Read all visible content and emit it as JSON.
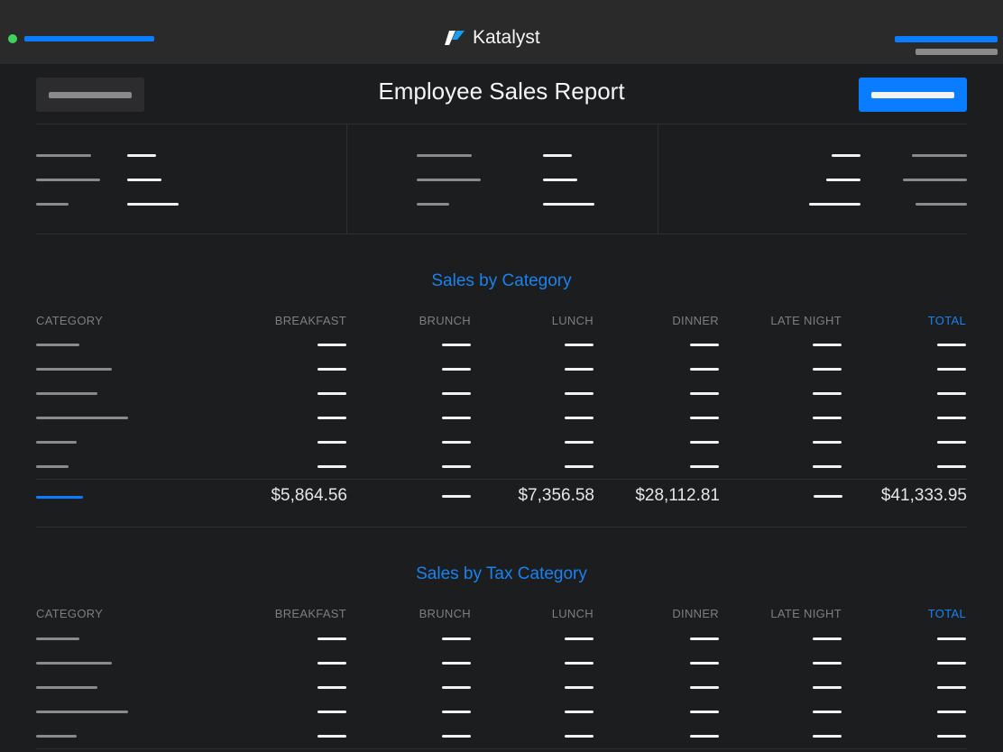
{
  "header": {
    "brand": "Katalyst",
    "status_color": "#3fd35b",
    "accent": "#0a7cff"
  },
  "page": {
    "title": "Employee Sales Report"
  },
  "sections": [
    {
      "title": "Sales by Category",
      "columns": [
        "CATEGORY",
        "BREAKFAST",
        "BRUNCH",
        "LUNCH",
        "DINNER",
        "LATE NIGHT",
        "TOTAL"
      ],
      "totals": {
        "breakfast": "$5,864.56",
        "lunch": "$7,356.58",
        "dinner": "$28,112.81",
        "total": "$41,333.95"
      }
    },
    {
      "title": "Sales by Tax Category",
      "columns": [
        "CATEGORY",
        "BREAKFAST",
        "BRUNCH",
        "LUNCH",
        "DINNER",
        "LATE NIGHT",
        "TOTAL"
      ]
    }
  ]
}
